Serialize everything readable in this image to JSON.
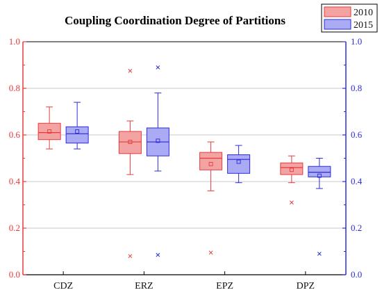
{
  "chart_data": {
    "type": "box",
    "title": "Coupling Coordination Degree of Partitions",
    "xlabel": "",
    "ylabel": "",
    "categories": [
      "CDZ",
      "ERZ",
      "EPZ",
      "DPZ"
    ],
    "ylim": [
      0.0,
      1.0
    ],
    "yticks": [
      "0.0",
      "0.2",
      "0.4",
      "0.6",
      "0.8",
      "1.0"
    ],
    "grid": true,
    "legend_position": "top-right",
    "series": [
      {
        "name": "2010",
        "color_fill": "#f4a3a3",
        "color_line": "#e8393b",
        "boxes": [
          {
            "whisker_low": 0.54,
            "q1": 0.58,
            "median": 0.61,
            "q3": 0.65,
            "whisker_high": 0.72,
            "mean": 0.615,
            "outliers": []
          },
          {
            "whisker_low": 0.43,
            "q1": 0.52,
            "median": 0.57,
            "q3": 0.615,
            "whisker_high": 0.66,
            "mean": 0.57,
            "outliers": [
              0.875,
              0.08
            ]
          },
          {
            "whisker_low": 0.36,
            "q1": 0.45,
            "median": 0.5,
            "q3": 0.525,
            "whisker_high": 0.57,
            "mean": 0.475,
            "outliers": [
              0.095
            ]
          },
          {
            "whisker_low": 0.395,
            "q1": 0.43,
            "median": 0.46,
            "q3": 0.48,
            "whisker_high": 0.51,
            "mean": 0.45,
            "outliers": [
              0.31
            ]
          }
        ]
      },
      {
        "name": "2015",
        "color_fill": "#aaaaf5",
        "color_line": "#2b2bdc",
        "boxes": [
          {
            "whisker_low": 0.54,
            "q1": 0.565,
            "median": 0.605,
            "q3": 0.635,
            "whisker_high": 0.74,
            "mean": 0.615,
            "outliers": []
          },
          {
            "whisker_low": 0.445,
            "q1": 0.51,
            "median": 0.57,
            "q3": 0.63,
            "whisker_high": 0.78,
            "mean": 0.575,
            "outliers": [
              0.89,
              0.085
            ]
          },
          {
            "whisker_low": 0.395,
            "q1": 0.435,
            "median": 0.495,
            "q3": 0.515,
            "whisker_high": 0.555,
            "mean": 0.485,
            "outliers": []
          },
          {
            "whisker_low": 0.37,
            "q1": 0.42,
            "median": 0.44,
            "q3": 0.465,
            "whisker_high": 0.5,
            "mean": 0.425,
            "outliers": [
              0.09
            ]
          }
        ]
      }
    ],
    "left_axis_color": "#e8393b",
    "right_axis_color": "#2b2bdc"
  }
}
